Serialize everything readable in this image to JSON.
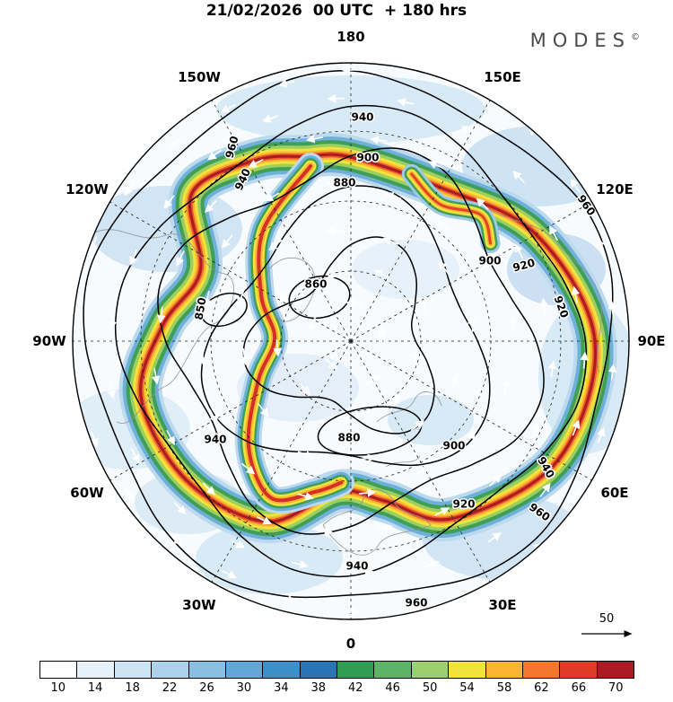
{
  "header": {
    "title": "21/02/2026  00 UTC  + 180 hrs",
    "brand": "MODES",
    "brand_mark": "©"
  },
  "map": {
    "projection": "north-polar",
    "lon_labels": [
      "180",
      "150E",
      "120E",
      "90E",
      "60E",
      "30E",
      "0",
      "30W",
      "60W",
      "90W",
      "120W",
      "150W"
    ],
    "contour_labels": [
      "940",
      "960",
      "940",
      "900",
      "880",
      "960",
      "900",
      "920",
      "920",
      "850",
      "860",
      "940",
      "880",
      "900",
      "920",
      "940",
      "960",
      "940",
      "960"
    ],
    "reference_vector_label": "50"
  },
  "colorbar": {
    "cells": [
      {
        "label": "10",
        "color": "#ffffff"
      },
      {
        "label": "14",
        "color": "#e6f1f9"
      },
      {
        "label": "18",
        "color": "#cde4f3"
      },
      {
        "label": "22",
        "color": "#acd2ec"
      },
      {
        "label": "26",
        "color": "#89bfe1"
      },
      {
        "label": "30",
        "color": "#62a7d5"
      },
      {
        "label": "34",
        "color": "#3f8fc7"
      },
      {
        "label": "38",
        "color": "#2a74b6"
      },
      {
        "label": "42",
        "color": "#2f9e52"
      },
      {
        "label": "46",
        "color": "#5cb566"
      },
      {
        "label": "50",
        "color": "#9ccf6f"
      },
      {
        "label": "54",
        "color": "#f2e23c"
      },
      {
        "label": "58",
        "color": "#fdb434"
      },
      {
        "label": "62",
        "color": "#f5772b"
      },
      {
        "label": "66",
        "color": "#de3c28"
      },
      {
        "label": "70",
        "color": "#aa1b24"
      }
    ]
  },
  "chart_data": {
    "type": "heatmap",
    "title": "21/02/2026 00 UTC + 180 hrs",
    "projection": "north-polar-stereographic",
    "shaded_field": "wind speed (jet stream), shaded",
    "vector_field": "wind direction arrows (white)",
    "contour_field": "geopotential height contours (black)",
    "colorbar_values": [
      10,
      14,
      18,
      22,
      26,
      30,
      34,
      38,
      42,
      46,
      50,
      54,
      58,
      62,
      66,
      70
    ],
    "contour_levels_visible": [
      850,
      860,
      880,
      900,
      920,
      940,
      960
    ],
    "longitude_ring_labels": [
      "180",
      "150E",
      "120E",
      "90E",
      "60E",
      "30E",
      "0",
      "30W",
      "60W",
      "90W",
      "120W",
      "150W"
    ],
    "reference_vector": 50,
    "legend_position": "bottom",
    "grid": "dashed polar graticule every 30 degrees longitude"
  }
}
